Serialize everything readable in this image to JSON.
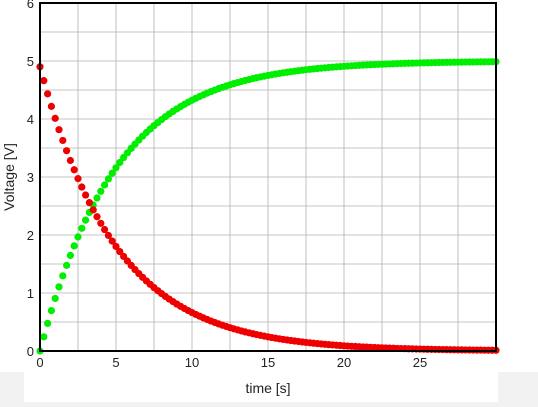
{
  "chart_data": {
    "type": "scatter",
    "title": "",
    "xlabel": "time [s]",
    "ylabel": "Voltage [V]",
    "xlim": [
      0,
      30
    ],
    "ylim": [
      0,
      6
    ],
    "xticks": [
      0,
      5,
      10,
      15,
      20,
      25
    ],
    "yticks": [
      0,
      1,
      2,
      3,
      4,
      5,
      6
    ],
    "grid": true,
    "legend": "none",
    "series": [
      {
        "color": "#00ee00",
        "model": "charging",
        "amplitude": 5,
        "tau": 5,
        "x_start": 0,
        "x_end": 30,
        "points": 121
      },
      {
        "color": "#ee0000",
        "model": "discharging",
        "amplitude": 4.9,
        "tau": 5,
        "x_start": 0,
        "x_end": 30,
        "points": 121
      }
    ]
  }
}
